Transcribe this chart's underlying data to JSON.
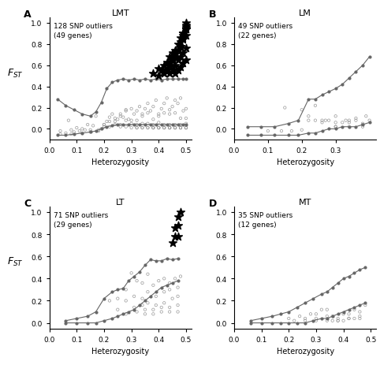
{
  "panels": [
    {
      "label": "A",
      "title": "LMT",
      "annotation": "128 SNP outliers\n(49 genes)",
      "xlim": [
        0,
        0.52
      ],
      "ylim": [
        -0.1,
        1.05
      ],
      "xticks": [
        0,
        0.1,
        0.2,
        0.3,
        0.4,
        0.5
      ],
      "yticks": [
        0.0,
        0.2,
        0.4,
        0.6,
        0.8,
        1.0
      ],
      "xlabel": "Heterozygosity",
      "show_ylabel": true,
      "upper_envelope_x": [
        0.03,
        0.06,
        0.09,
        0.12,
        0.15,
        0.17,
        0.19,
        0.21,
        0.23,
        0.25,
        0.27,
        0.29,
        0.31,
        0.33,
        0.35,
        0.37,
        0.39,
        0.41,
        0.43,
        0.45,
        0.47,
        0.49,
        0.5
      ],
      "upper_envelope_y": [
        0.28,
        0.22,
        0.18,
        0.14,
        0.12,
        0.16,
        0.25,
        0.38,
        0.44,
        0.46,
        0.47,
        0.46,
        0.47,
        0.46,
        0.47,
        0.46,
        0.47,
        0.46,
        0.47,
        0.47,
        0.47,
        0.47,
        0.47
      ],
      "lower_envelope_x": [
        0.03,
        0.06,
        0.09,
        0.12,
        0.15,
        0.17,
        0.19,
        0.21,
        0.23,
        0.25,
        0.27,
        0.29,
        0.31,
        0.33,
        0.35,
        0.37,
        0.39,
        0.41,
        0.43,
        0.45,
        0.47,
        0.49,
        0.5
      ],
      "lower_envelope_y": [
        -0.06,
        -0.06,
        -0.05,
        -0.04,
        -0.03,
        -0.02,
        0.0,
        0.02,
        0.03,
        0.04,
        0.04,
        0.04,
        0.04,
        0.04,
        0.04,
        0.04,
        0.04,
        0.04,
        0.04,
        0.04,
        0.04,
        0.04,
        0.04
      ],
      "dots_x": [
        0.04,
        0.06,
        0.07,
        0.08,
        0.09,
        0.1,
        0.11,
        0.12,
        0.13,
        0.14,
        0.15,
        0.16,
        0.17,
        0.18,
        0.19,
        0.2,
        0.21,
        0.22,
        0.23,
        0.24,
        0.25,
        0.26,
        0.27,
        0.28,
        0.29,
        0.3,
        0.31,
        0.32,
        0.33,
        0.34,
        0.35,
        0.36,
        0.37,
        0.38,
        0.39,
        0.4,
        0.41,
        0.42,
        0.43,
        0.44,
        0.45,
        0.46,
        0.47,
        0.48,
        0.49,
        0.5,
        0.04,
        0.08,
        0.12,
        0.15,
        0.18,
        0.2,
        0.22,
        0.24,
        0.26,
        0.28,
        0.3,
        0.32,
        0.34,
        0.36,
        0.38,
        0.4,
        0.42,
        0.44,
        0.46,
        0.48,
        0.5,
        0.2,
        0.22,
        0.24,
        0.26,
        0.28,
        0.3,
        0.32,
        0.34,
        0.36,
        0.38,
        0.4,
        0.42,
        0.44,
        0.46,
        0.48,
        0.5,
        0.26,
        0.28,
        0.3,
        0.32,
        0.34,
        0.36,
        0.38,
        0.4,
        0.42,
        0.44,
        0.46,
        0.48,
        0.5,
        0.32,
        0.34,
        0.36,
        0.38,
        0.4,
        0.42,
        0.44,
        0.46,
        0.48,
        0.5,
        0.38,
        0.4,
        0.42,
        0.44,
        0.46,
        0.48,
        0.5,
        0.44,
        0.46,
        0.48,
        0.5
      ],
      "dots_y": [
        -0.02,
        -0.04,
        0.08,
        -0.01,
        -0.03,
        0.01,
        -0.02,
        0.0,
        -0.01,
        0.04,
        -0.01,
        0.03,
        0.12,
        -0.01,
        0.0,
        0.04,
        0.07,
        0.11,
        0.14,
        0.07,
        0.09,
        0.14,
        0.11,
        0.17,
        0.09,
        0.19,
        0.14,
        0.17,
        0.21,
        0.14,
        0.19,
        0.24,
        0.17,
        0.21,
        0.27,
        0.14,
        0.19,
        0.24,
        0.29,
        0.14,
        0.21,
        0.27,
        0.24,
        0.29,
        0.17,
        0.19,
        -0.05,
        -0.05,
        -0.04,
        -0.03,
        -0.02,
        0.04,
        0.07,
        0.1,
        0.12,
        0.18,
        0.05,
        0.08,
        0.12,
        0.15,
        0.09,
        0.12,
        0.15,
        0.18,
        0.15,
        0.1,
        0.1,
        0.02,
        0.02,
        0.04,
        0.04,
        0.08,
        0.08,
        0.04,
        0.05,
        0.05,
        0.04,
        0.06,
        0.04,
        0.04,
        0.04,
        0.04,
        0.05,
        0.02,
        0.02,
        0.01,
        0.01,
        0.01,
        0.01,
        0.01,
        0.01,
        0.01,
        0.01,
        0.01,
        0.01,
        0.01,
        0.01,
        0.01,
        0.01,
        0.01,
        0.01,
        0.01,
        0.01,
        0.01,
        0.01,
        0.01,
        0.01,
        0.01,
        0.01,
        0.01,
        0.01,
        0.01,
        0.01,
        0.01,
        0.01,
        0.01,
        0.01
      ],
      "stars_x": [
        0.38,
        0.4,
        0.4,
        0.41,
        0.42,
        0.42,
        0.43,
        0.43,
        0.44,
        0.44,
        0.44,
        0.45,
        0.45,
        0.45,
        0.46,
        0.46,
        0.46,
        0.47,
        0.47,
        0.47,
        0.48,
        0.48,
        0.48,
        0.49,
        0.49,
        0.49,
        0.5,
        0.5,
        0.5,
        0.5,
        0.43,
        0.44,
        0.45,
        0.46,
        0.47,
        0.48,
        0.49,
        0.5,
        0.46,
        0.47,
        0.48,
        0.49,
        0.5,
        0.48,
        0.49,
        0.5,
        0.49,
        0.5,
        0.5
      ],
      "stars_y": [
        0.52,
        0.5,
        0.57,
        0.55,
        0.52,
        0.6,
        0.55,
        0.63,
        0.52,
        0.6,
        0.68,
        0.56,
        0.64,
        0.72,
        0.52,
        0.6,
        0.7,
        0.55,
        0.65,
        0.74,
        0.58,
        0.68,
        0.78,
        0.62,
        0.72,
        0.84,
        0.65,
        0.76,
        0.88,
        0.98,
        0.56,
        0.62,
        0.68,
        0.74,
        0.8,
        0.86,
        0.9,
        0.94,
        0.68,
        0.75,
        0.82,
        0.9,
        0.96,
        0.78,
        0.86,
        0.94,
        0.88,
        0.95,
        1.0
      ]
    },
    {
      "label": "B",
      "title": "LM",
      "annotation": "49 SNP outliers\n(22 genes)",
      "xlim": [
        0,
        0.42
      ],
      "ylim": [
        -0.1,
        1.05
      ],
      "xticks": [
        0,
        0.1,
        0.2,
        0.3
      ],
      "yticks": [
        0.0,
        0.2,
        0.4,
        0.6,
        0.8,
        1.0
      ],
      "xlabel": "Heterozygosity",
      "show_ylabel": false,
      "upper_envelope_x": [
        0.04,
        0.08,
        0.12,
        0.16,
        0.19,
        0.22,
        0.24,
        0.26,
        0.28,
        0.3,
        0.32,
        0.34,
        0.36,
        0.38,
        0.4
      ],
      "upper_envelope_y": [
        0.02,
        0.02,
        0.02,
        0.05,
        0.08,
        0.28,
        0.28,
        0.32,
        0.35,
        0.38,
        0.42,
        0.48,
        0.54,
        0.6,
        0.68
      ],
      "lower_envelope_x": [
        0.04,
        0.08,
        0.12,
        0.16,
        0.19,
        0.22,
        0.24,
        0.26,
        0.28,
        0.3,
        0.32,
        0.34,
        0.36,
        0.38,
        0.4
      ],
      "lower_envelope_y": [
        -0.06,
        -0.06,
        -0.06,
        -0.06,
        -0.06,
        -0.04,
        -0.04,
        -0.02,
        0.0,
        0.0,
        0.02,
        0.02,
        0.02,
        0.04,
        0.06
      ],
      "dots_x": [
        0.1,
        0.14,
        0.17,
        0.2,
        0.22,
        0.24,
        0.26,
        0.28,
        0.3,
        0.32,
        0.34,
        0.36,
        0.38,
        0.4,
        0.15,
        0.2,
        0.24,
        0.27,
        0.3,
        0.33,
        0.36,
        0.39,
        0.22,
        0.26,
        0.3,
        0.34,
        0.38,
        0.3,
        0.34,
        0.38
      ],
      "dots_y": [
        -0.02,
        -0.02,
        -0.02,
        -0.01,
        0.08,
        0.08,
        0.06,
        0.08,
        0.02,
        0.06,
        0.08,
        0.08,
        0.05,
        0.08,
        0.2,
        0.18,
        0.22,
        0.08,
        0.12,
        0.08,
        0.1,
        0.12,
        0.12,
        0.08,
        0.06,
        0.06,
        0.04,
        0.02,
        0.02,
        0.02
      ],
      "stars_x": [],
      "stars_y": []
    },
    {
      "label": "C",
      "title": "LT",
      "annotation": "71 SNP outliers\n(29 genes)",
      "xlim": [
        0,
        0.52
      ],
      "ylim": [
        -0.05,
        1.05
      ],
      "xticks": [
        0,
        0.1,
        0.2,
        0.3,
        0.4,
        0.5
      ],
      "yticks": [
        0.0,
        0.2,
        0.4,
        0.6,
        0.8,
        1.0
      ],
      "xlabel": "Heterozygosity",
      "show_ylabel": true,
      "upper_envelope_x": [
        0.06,
        0.1,
        0.14,
        0.17,
        0.2,
        0.23,
        0.25,
        0.27,
        0.29,
        0.31,
        0.33,
        0.35,
        0.37,
        0.39,
        0.41,
        0.43,
        0.45,
        0.47
      ],
      "upper_envelope_y": [
        0.02,
        0.04,
        0.06,
        0.1,
        0.22,
        0.28,
        0.3,
        0.31,
        0.38,
        0.42,
        0.46,
        0.52,
        0.57,
        0.56,
        0.56,
        0.58,
        0.57,
        0.58
      ],
      "lower_envelope_x": [
        0.06,
        0.1,
        0.14,
        0.17,
        0.2,
        0.23,
        0.25,
        0.27,
        0.29,
        0.31,
        0.33,
        0.35,
        0.37,
        0.39,
        0.41,
        0.43,
        0.45,
        0.47
      ],
      "lower_envelope_y": [
        0.0,
        0.0,
        0.0,
        0.0,
        0.02,
        0.04,
        0.06,
        0.08,
        0.1,
        0.12,
        0.16,
        0.2,
        0.24,
        0.28,
        0.32,
        0.34,
        0.36,
        0.38
      ],
      "dots_x": [
        0.22,
        0.25,
        0.28,
        0.3,
        0.32,
        0.34,
        0.36,
        0.38,
        0.4,
        0.42,
        0.44,
        0.46,
        0.48,
        0.25,
        0.28,
        0.31,
        0.34,
        0.36,
        0.39,
        0.42,
        0.44,
        0.47,
        0.28,
        0.31,
        0.34,
        0.36,
        0.39,
        0.42,
        0.45,
        0.47,
        0.32,
        0.35,
        0.38,
        0.41,
        0.44,
        0.47,
        0.35,
        0.38,
        0.41,
        0.44,
        0.47
      ],
      "dots_y": [
        0.2,
        0.22,
        0.3,
        0.45,
        0.38,
        0.36,
        0.44,
        0.34,
        0.38,
        0.4,
        0.36,
        0.4,
        0.42,
        0.12,
        0.2,
        0.24,
        0.22,
        0.28,
        0.24,
        0.28,
        0.3,
        0.32,
        0.08,
        0.14,
        0.16,
        0.18,
        0.16,
        0.18,
        0.22,
        0.24,
        0.1,
        0.12,
        0.12,
        0.14,
        0.14,
        0.16,
        0.08,
        0.08,
        0.1,
        0.1,
        0.1
      ],
      "stars_x": [
        0.45,
        0.46,
        0.46,
        0.47,
        0.47,
        0.47,
        0.48
      ],
      "stars_y": [
        0.72,
        0.78,
        0.86,
        0.78,
        0.88,
        0.96,
        1.0
      ]
    },
    {
      "label": "D",
      "title": "MT",
      "annotation": "35 SNP outliers\n(12 genes)",
      "xlim": [
        0,
        0.52
      ],
      "ylim": [
        -0.05,
        1.05
      ],
      "xticks": [
        0,
        0.1,
        0.2,
        0.3,
        0.4,
        0.5
      ],
      "yticks": [
        0.0,
        0.2,
        0.4,
        0.6,
        0.8,
        1.0
      ],
      "xlabel": "Heterozygosity",
      "show_ylabel": false,
      "upper_envelope_x": [
        0.06,
        0.1,
        0.14,
        0.17,
        0.2,
        0.23,
        0.26,
        0.29,
        0.32,
        0.34,
        0.36,
        0.38,
        0.4,
        0.42,
        0.44,
        0.46,
        0.48
      ],
      "upper_envelope_y": [
        0.02,
        0.04,
        0.06,
        0.08,
        0.1,
        0.14,
        0.18,
        0.22,
        0.26,
        0.28,
        0.32,
        0.36,
        0.4,
        0.42,
        0.45,
        0.48,
        0.5
      ],
      "lower_envelope_x": [
        0.06,
        0.1,
        0.14,
        0.17,
        0.2,
        0.23,
        0.26,
        0.29,
        0.32,
        0.34,
        0.36,
        0.38,
        0.4,
        0.42,
        0.44,
        0.46,
        0.48
      ],
      "lower_envelope_y": [
        0.0,
        0.0,
        0.0,
        0.0,
        0.0,
        0.0,
        0.0,
        0.02,
        0.04,
        0.04,
        0.06,
        0.08,
        0.1,
        0.12,
        0.14,
        0.16,
        0.18
      ],
      "dots_x": [
        0.2,
        0.24,
        0.28,
        0.32,
        0.36,
        0.4,
        0.44,
        0.48,
        0.22,
        0.26,
        0.3,
        0.34,
        0.38,
        0.42,
        0.46,
        0.26,
        0.3,
        0.34,
        0.38,
        0.42,
        0.46,
        0.3,
        0.34,
        0.38,
        0.42,
        0.46,
        0.36,
        0.4,
        0.44
      ],
      "dots_y": [
        0.04,
        0.06,
        0.08,
        0.12,
        0.06,
        0.08,
        0.12,
        0.16,
        0.02,
        0.04,
        0.08,
        0.12,
        0.04,
        0.08,
        0.1,
        0.02,
        0.04,
        0.06,
        0.02,
        0.04,
        0.06,
        0.02,
        0.02,
        0.02,
        0.04,
        0.04,
        0.02,
        0.02,
        0.04
      ],
      "stars_x": [],
      "stars_y": []
    }
  ],
  "fig_width": 4.82,
  "fig_height": 4.64,
  "background_color": "#ffffff",
  "dot_color": "#999999",
  "star_color": "#000000",
  "line_color": "#666666",
  "envelope_dot_size": 4,
  "scatter_dot_size": 6,
  "star_size": 55
}
